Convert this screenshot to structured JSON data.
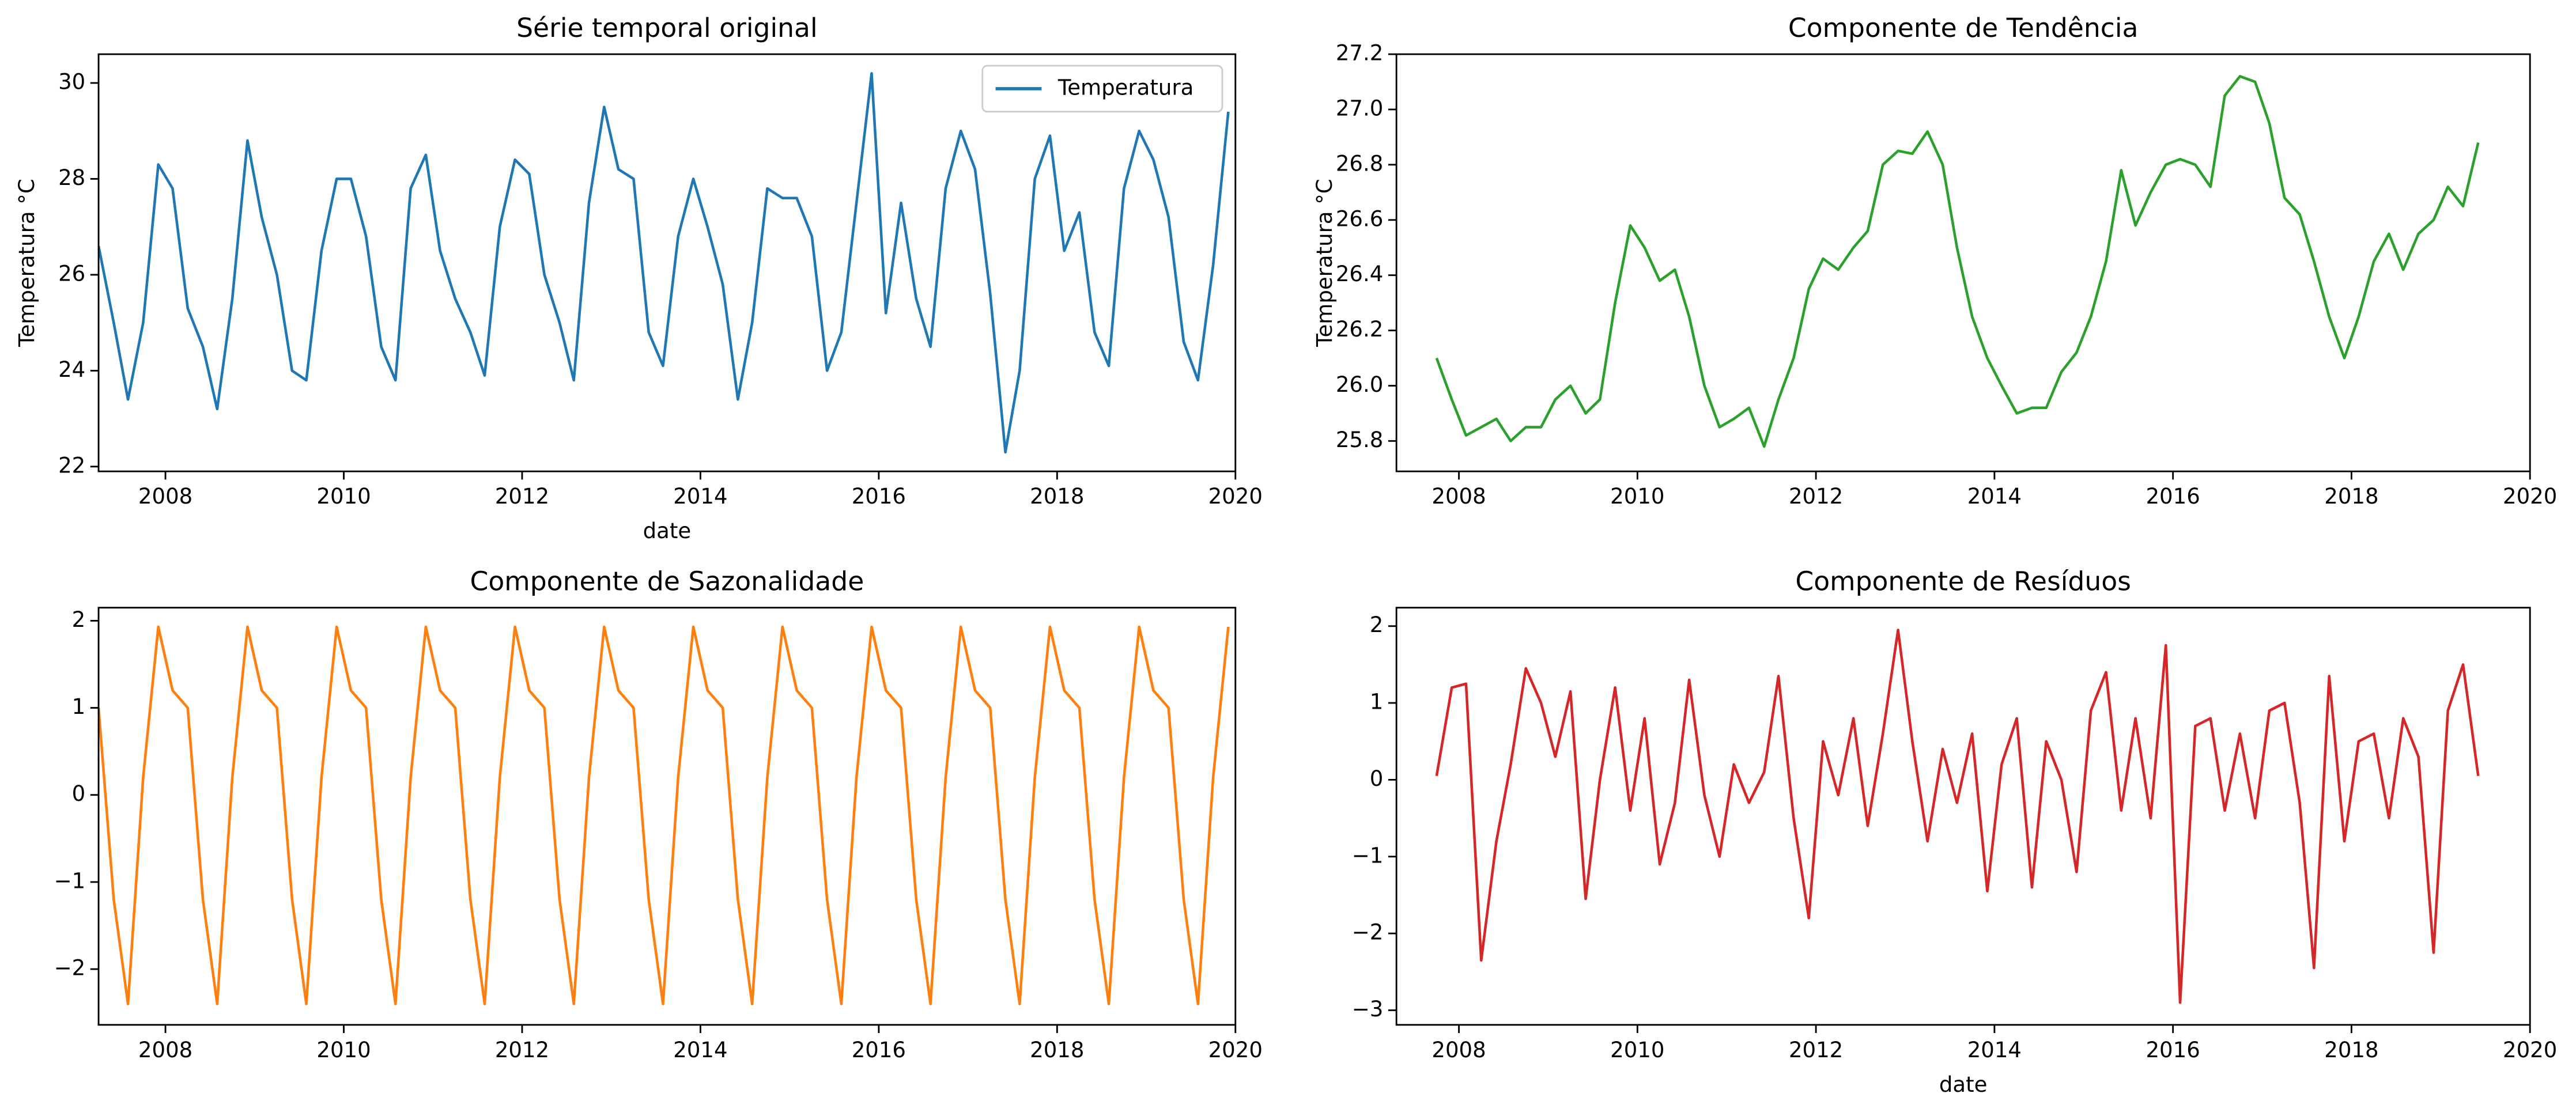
{
  "chart_data": [
    {
      "type": "line",
      "title": "Série temporal original",
      "xlabel": "date",
      "ylabel": "Temperatura °C",
      "legend": "upper right",
      "x": [
        2007.25,
        2007.42,
        2007.58,
        2007.75,
        2007.92,
        2008.08,
        2008.25,
        2008.42,
        2008.58,
        2008.75,
        2008.92,
        2009.08,
        2009.25,
        2009.42,
        2009.58,
        2009.75,
        2009.92,
        2010.08,
        2010.25,
        2010.42,
        2010.58,
        2010.75,
        2010.92,
        2011.08,
        2011.25,
        2011.42,
        2011.58,
        2011.75,
        2011.92,
        2012.08,
        2012.25,
        2012.42,
        2012.58,
        2012.75,
        2012.92,
        2013.08,
        2013.25,
        2013.42,
        2013.58,
        2013.75,
        2013.92,
        2014.08,
        2014.25,
        2014.42,
        2014.58,
        2014.75,
        2014.92,
        2015.08,
        2015.25,
        2015.42,
        2015.58,
        2015.75,
        2015.92,
        2016.08,
        2016.25,
        2016.42,
        2016.58,
        2016.75,
        2016.92,
        2017.08,
        2017.25,
        2017.42,
        2017.58,
        2017.75,
        2017.92,
        2018.08,
        2018.25,
        2018.42,
        2018.58,
        2018.75,
        2018.92,
        2019.08,
        2019.25,
        2019.42,
        2019.58,
        2019.75,
        2019.92
      ],
      "series": [
        {
          "name": "Temperatura",
          "color": "#1f77b4",
          "values": [
            26.6,
            25.0,
            23.4,
            25.0,
            28.3,
            27.8,
            25.3,
            24.5,
            23.2,
            25.5,
            28.8,
            27.2,
            26.0,
            24.0,
            23.8,
            26.5,
            28.0,
            28.0,
            26.8,
            24.5,
            23.8,
            27.8,
            28.5,
            26.5,
            25.5,
            24.8,
            23.9,
            27.0,
            28.4,
            28.1,
            26.0,
            25.0,
            23.8,
            27.5,
            29.5,
            28.2,
            28.0,
            24.8,
            24.1,
            26.8,
            28.0,
            27.0,
            25.8,
            23.4,
            25.0,
            27.8,
            27.6,
            27.6,
            26.8,
            24.0,
            24.8,
            27.5,
            30.2,
            25.2,
            27.5,
            25.5,
            24.5,
            27.8,
            29.0,
            28.2,
            25.6,
            22.3,
            24.0,
            28.0,
            28.9,
            26.5,
            27.3,
            24.8,
            24.1,
            27.8,
            29.0,
            28.4,
            27.2,
            24.6,
            23.8,
            26.2,
            29.4
          ]
        }
      ],
      "xlim": [
        2007.25,
        2020.0
      ],
      "xticks": [
        2008,
        2010,
        2012,
        2014,
        2016,
        2018,
        2020
      ],
      "ylim": [
        21.9,
        30.6
      ],
      "yticks": [
        22,
        24,
        26,
        28,
        30
      ]
    },
    {
      "type": "line",
      "title": "Componente de Tendência",
      "ylabel": "Temperatura °C",
      "color": "#2ca02c",
      "x": [
        2007.75,
        2007.92,
        2008.08,
        2008.25,
        2008.42,
        2008.58,
        2008.75,
        2008.92,
        2009.08,
        2009.25,
        2009.42,
        2009.58,
        2009.75,
        2009.92,
        2010.08,
        2010.25,
        2010.42,
        2010.58,
        2010.75,
        2010.92,
        2011.08,
        2011.25,
        2011.42,
        2011.58,
        2011.75,
        2011.92,
        2012.08,
        2012.25,
        2012.42,
        2012.58,
        2012.75,
        2012.92,
        2013.08,
        2013.25,
        2013.42,
        2013.58,
        2013.75,
        2013.92,
        2014.08,
        2014.25,
        2014.42,
        2014.58,
        2014.75,
        2014.92,
        2015.08,
        2015.25,
        2015.42,
        2015.58,
        2015.75,
        2015.92,
        2016.08,
        2016.25,
        2016.42,
        2016.58,
        2016.75,
        2016.92,
        2017.08,
        2017.25,
        2017.42,
        2017.58,
        2017.75,
        2017.92,
        2018.08,
        2018.25,
        2018.42,
        2018.58,
        2018.75,
        2018.92,
        2019.08,
        2019.25,
        2019.42
      ],
      "values": [
        26.1,
        25.95,
        25.82,
        25.85,
        25.88,
        25.8,
        25.85,
        25.85,
        25.95,
        26.0,
        25.9,
        25.95,
        26.3,
        26.58,
        26.5,
        26.38,
        26.42,
        26.25,
        26.0,
        25.85,
        25.88,
        25.92,
        25.78,
        25.95,
        26.1,
        26.35,
        26.46,
        26.42,
        26.5,
        26.56,
        26.8,
        26.85,
        26.84,
        26.92,
        26.8,
        26.5,
        26.25,
        26.1,
        26.0,
        25.9,
        25.92,
        25.92,
        26.05,
        26.12,
        26.25,
        26.45,
        26.78,
        26.58,
        26.7,
        26.8,
        26.82,
        26.8,
        26.72,
        27.05,
        27.12,
        27.1,
        26.95,
        26.68,
        26.62,
        26.45,
        26.25,
        26.1,
        26.25,
        26.45,
        26.55,
        26.42,
        26.55,
        26.6,
        26.72,
        26.65,
        26.88
      ],
      "xlim": [
        2007.3,
        2020.0
      ],
      "xticks": [
        2008,
        2010,
        2012,
        2014,
        2016,
        2018,
        2020
      ],
      "ylim": [
        25.69,
        27.2
      ],
      "yticks": [
        25.8,
        {
          "value": 26,
          "label": "26.0"
        },
        26.2,
        26.4,
        26.6,
        26.8,
        {
          "value": 27,
          "label": "27.0"
        },
        27.2
      ]
    },
    {
      "type": "line",
      "title": "Componente de Sazonalidade",
      "color": "#ff7f0e",
      "x": [
        2007.25,
        2007.42,
        2007.58,
        2007.75,
        2007.92,
        2008.08,
        2008.25,
        2008.42,
        2008.58,
        2008.75,
        2008.92,
        2009.08,
        2009.25,
        2009.42,
        2009.58,
        2009.75,
        2009.92,
        2010.08,
        2010.25,
        2010.42,
        2010.58,
        2010.75,
        2010.92,
        2011.08,
        2011.25,
        2011.42,
        2011.58,
        2011.75,
        2011.92,
        2012.08,
        2012.25,
        2012.42,
        2012.58,
        2012.75,
        2012.92,
        2013.08,
        2013.25,
        2013.42,
        2013.58,
        2013.75,
        2013.92,
        2014.08,
        2014.25,
        2014.42,
        2014.58,
        2014.75,
        2014.92,
        2015.08,
        2015.25,
        2015.42,
        2015.58,
        2015.75,
        2015.92,
        2016.08,
        2016.25,
        2016.42,
        2016.58,
        2016.75,
        2016.92,
        2017.08,
        2017.25,
        2017.42,
        2017.58,
        2017.75,
        2017.92,
        2018.08,
        2018.25,
        2018.42,
        2018.58,
        2018.75,
        2018.92,
        2019.08,
        2019.25,
        2019.42,
        2019.58,
        2019.75,
        2019.92
      ],
      "values": [
        1.0,
        -1.2,
        -2.4,
        0.2,
        1.93,
        1.2,
        1.0,
        -1.2,
        -2.4,
        0.2,
        1.93,
        1.2,
        1.0,
        -1.2,
        -2.4,
        0.2,
        1.93,
        1.2,
        1.0,
        -1.2,
        -2.4,
        0.2,
        1.93,
        1.2,
        1.0,
        -1.2,
        -2.4,
        0.2,
        1.93,
        1.2,
        1.0,
        -1.2,
        -2.4,
        0.2,
        1.93,
        1.2,
        1.0,
        -1.2,
        -2.4,
        0.2,
        1.93,
        1.2,
        1.0,
        -1.2,
        -2.4,
        0.2,
        1.93,
        1.2,
        1.0,
        -1.2,
        -2.4,
        0.2,
        1.93,
        1.2,
        1.0,
        -1.2,
        -2.4,
        0.2,
        1.93,
        1.2,
        1.0,
        -1.2,
        -2.4,
        0.2,
        1.93,
        1.2,
        1.0,
        -1.2,
        -2.4,
        0.2,
        1.93,
        1.2,
        1.0,
        -1.2,
        -2.4,
        0.2,
        1.93
      ],
      "xlim": [
        2007.25,
        2020.0
      ],
      "xticks": [
        2008,
        2010,
        2012,
        2014,
        2016,
        2018,
        2020
      ],
      "ylim": [
        -2.64,
        2.15
      ],
      "yticks": [
        {
          "value": -2,
          "label": "−2"
        },
        {
          "value": -1,
          "label": "−1"
        },
        0,
        1,
        2
      ]
    },
    {
      "type": "line",
      "title": "Componente de Resíduos",
      "xlabel": "date",
      "color": "#d62728",
      "x": [
        2007.75,
        2007.92,
        2008.08,
        2008.25,
        2008.42,
        2008.58,
        2008.75,
        2008.92,
        2009.08,
        2009.25,
        2009.42,
        2009.58,
        2009.75,
        2009.92,
        2010.08,
        2010.25,
        2010.42,
        2010.58,
        2010.75,
        2010.92,
        2011.08,
        2011.25,
        2011.42,
        2011.58,
        2011.75,
        2011.92,
        2012.08,
        2012.25,
        2012.42,
        2012.58,
        2012.75,
        2012.92,
        2013.08,
        2013.25,
        2013.42,
        2013.58,
        2013.75,
        2013.92,
        2014.08,
        2014.25,
        2014.42,
        2014.58,
        2014.75,
        2014.92,
        2015.08,
        2015.25,
        2015.42,
        2015.58,
        2015.75,
        2015.92,
        2016.08,
        2016.25,
        2016.42,
        2016.58,
        2016.75,
        2016.92,
        2017.08,
        2017.25,
        2017.42,
        2017.58,
        2017.75,
        2017.92,
        2018.08,
        2018.25,
        2018.42,
        2018.58,
        2018.75,
        2018.92,
        2019.08,
        2019.25,
        2019.42
      ],
      "values": [
        0.05,
        1.2,
        1.25,
        -2.35,
        -0.8,
        0.2,
        1.45,
        1.0,
        0.3,
        1.15,
        -1.55,
        0.0,
        1.2,
        -0.4,
        0.8,
        -1.1,
        -0.3,
        1.3,
        -0.2,
        -1.0,
        0.2,
        -0.3,
        0.1,
        1.35,
        -0.5,
        -1.8,
        0.5,
        -0.2,
        0.8,
        -0.6,
        0.6,
        1.95,
        0.5,
        -0.8,
        0.4,
        -0.3,
        0.6,
        -1.45,
        0.2,
        0.8,
        -1.4,
        0.5,
        0.0,
        -1.2,
        0.9,
        1.4,
        -0.4,
        0.8,
        -0.5,
        1.75,
        -2.9,
        0.7,
        0.8,
        -0.4,
        0.6,
        -0.5,
        0.9,
        1.0,
        -0.3,
        -2.45,
        1.35,
        -0.8,
        0.5,
        0.6,
        -0.5,
        0.8,
        0.3,
        -2.25,
        0.9,
        1.5,
        0.05
      ],
      "xlim": [
        2007.3,
        2020.0
      ],
      "xticks": [
        2008,
        2010,
        2012,
        2014,
        2016,
        2018,
        2020
      ],
      "ylim": [
        -3.19,
        2.24
      ],
      "yticks": [
        {
          "value": -3,
          "label": "−3"
        },
        {
          "value": -2,
          "label": "−2"
        },
        {
          "value": -1,
          "label": "−1"
        },
        0,
        1,
        2
      ]
    }
  ]
}
